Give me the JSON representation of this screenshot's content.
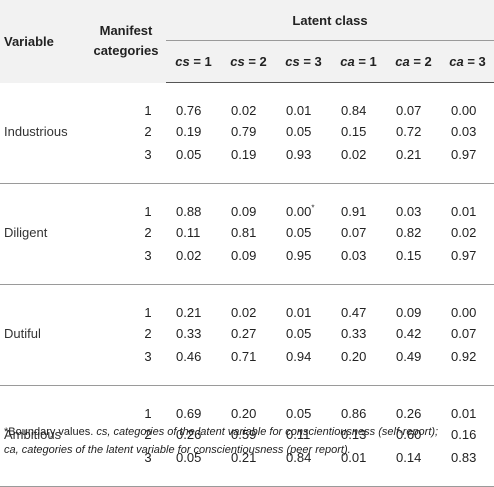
{
  "table": {
    "header": {
      "variable": "Variable",
      "manifest_line1": "Manifest",
      "manifest_line2": "categories",
      "latent": "Latent class",
      "classes": [
        {
          "var": "cs",
          "rest": " = 1"
        },
        {
          "var": "cs",
          "rest": " = 2"
        },
        {
          "var": "cs",
          "rest": " = 3"
        },
        {
          "var": "ca",
          "rest": " = 1"
        },
        {
          "var": "ca",
          "rest": " = 2"
        },
        {
          "var": "ca",
          "rest": " = 3"
        }
      ]
    },
    "groups": [
      {
        "name": "Industrious",
        "rows": [
          {
            "cat": "1",
            "vals": [
              "0.76",
              "0.02",
              "0.01",
              "0.84",
              "0.07",
              "0.00"
            ]
          },
          {
            "cat": "2",
            "vals": [
              "0.19",
              "0.79",
              "0.05",
              "0.15",
              "0.72",
              "0.03"
            ]
          },
          {
            "cat": "3",
            "vals": [
              "0.05",
              "0.19",
              "0.93",
              "0.02",
              "0.21",
              "0.97"
            ]
          }
        ]
      },
      {
        "name": "Diligent",
        "rows": [
          {
            "cat": "1",
            "vals": [
              "0.88",
              "0.09",
              "0.00",
              "0.91",
              "0.03",
              "0.01"
            ],
            "mark": "*"
          },
          {
            "cat": "2",
            "vals": [
              "0.11",
              "0.81",
              "0.05",
              "0.07",
              "0.82",
              "0.02"
            ]
          },
          {
            "cat": "3",
            "vals": [
              "0.02",
              "0.09",
              "0.95",
              "0.03",
              "0.15",
              "0.97"
            ]
          }
        ]
      },
      {
        "name": "Dutiful",
        "rows": [
          {
            "cat": "1",
            "vals": [
              "0.21",
              "0.02",
              "0.01",
              "0.47",
              "0.09",
              "0.00"
            ]
          },
          {
            "cat": "2",
            "vals": [
              "0.33",
              "0.27",
              "0.05",
              "0.33",
              "0.42",
              "0.07"
            ]
          },
          {
            "cat": "3",
            "vals": [
              "0.46",
              "0.71",
              "0.94",
              "0.20",
              "0.49",
              "0.92"
            ]
          }
        ]
      },
      {
        "name": "Ambitious",
        "rows": [
          {
            "cat": "1",
            "vals": [
              "0.69",
              "0.20",
              "0.05",
              "0.86",
              "0.26",
              "0.01"
            ]
          },
          {
            "cat": "2",
            "vals": [
              "0.26",
              "0.59",
              "0.11",
              "0.13",
              "0.60",
              "0.16"
            ]
          },
          {
            "cat": "3",
            "vals": [
              "0.05",
              "0.21",
              "0.84",
              "0.01",
              "0.14",
              "0.83"
            ]
          }
        ]
      }
    ]
  },
  "footnote": {
    "marker": "*",
    "line1_prefix": "Boundary values. ",
    "line1_rest": "cs, categories of the latent variable for conscientiousness (self-report);",
    "line2": "ca, categories of the latent variable for conscientiousness (peer report)."
  },
  "colors": {
    "header_background": "#f2f2f2",
    "rule": "#9a9a9a",
    "text": "#222222"
  }
}
